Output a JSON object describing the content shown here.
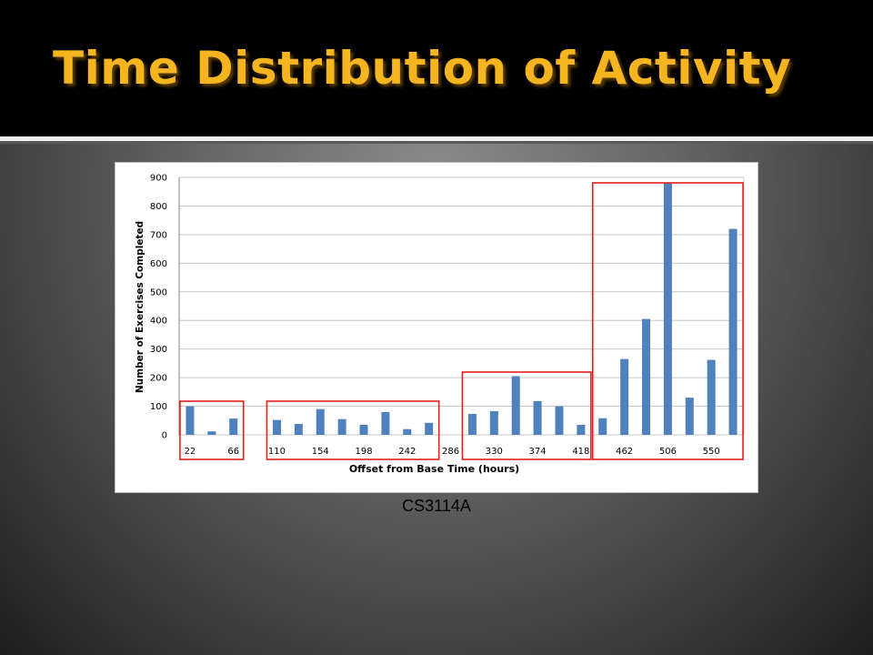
{
  "slide": {
    "title": "Time Distribution of Activity",
    "caption": "CS3114A",
    "title_color": "#f5b520"
  },
  "chart_data": {
    "type": "bar",
    "xlabel": "Offset from Base Time (hours)",
    "ylabel": "Number of Exercises Completed",
    "ylim": [
      0,
      900
    ],
    "yticks": [
      0,
      100,
      200,
      300,
      400,
      500,
      600,
      700,
      800,
      900
    ],
    "xtick_labels": [
      "22",
      "66",
      "110",
      "154",
      "198",
      "242",
      "286",
      "330",
      "374",
      "418",
      "462",
      "506",
      "550"
    ],
    "x": [
      22,
      44,
      66,
      88,
      110,
      132,
      154,
      176,
      198,
      220,
      242,
      264,
      286,
      308,
      330,
      352,
      374,
      396,
      418,
      440,
      462,
      484,
      506,
      528,
      550,
      572
    ],
    "values": [
      100,
      12,
      57,
      0,
      52,
      38,
      90,
      55,
      35,
      80,
      20,
      42,
      0,
      73,
      83,
      205,
      118,
      100,
      35,
      58,
      265,
      405,
      880,
      130,
      262,
      720
    ],
    "bar_color": "#4f81bd",
    "gridlines": true,
    "legend": "none",
    "highlight_boxes": [
      {
        "from": 22,
        "to": 66
      },
      {
        "from": 110,
        "to": 264
      },
      {
        "from": 308,
        "to": 418
      },
      {
        "from": 440,
        "to": 572
      }
    ],
    "highlight_color": "#e0201f"
  }
}
